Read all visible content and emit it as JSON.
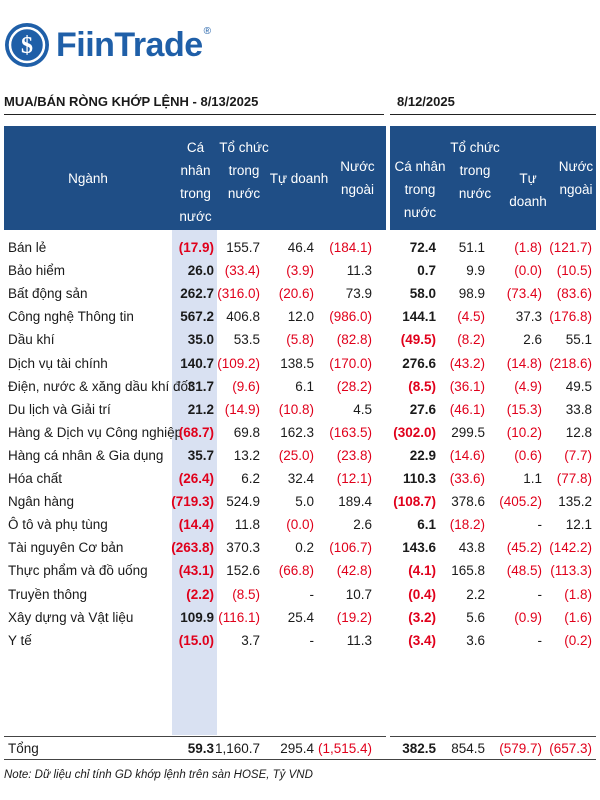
{
  "brand": {
    "name": "FiinTrade",
    "reg": "®",
    "color": "#1f5fa8"
  },
  "header": {
    "left_title": "MUA/BÁN RÒNG KHỚP LỆNH - 8/13/2025",
    "right_title": "8/12/2025"
  },
  "columns": {
    "sector": "Ngành",
    "individual": [
      "Cá nhân",
      "trong",
      "nước"
    ],
    "institution": [
      "Tổ chức",
      "trong",
      "nước"
    ],
    "proprietary": [
      "Tự doanh"
    ],
    "foreign": [
      "Nước",
      "ngoài"
    ],
    "individual_r": [
      "Cá nhân",
      "trong nước"
    ],
    "institution_r": [
      "Tổ chức",
      "trong",
      "nước"
    ],
    "proprietary_r": [
      "Tự doanh"
    ],
    "foreign_r": [
      "Nước",
      "ngoài"
    ]
  },
  "rows": [
    {
      "name": "Bán lẻ",
      "a": "(17.9)",
      "b": "155.7",
      "c": "46.4",
      "d": "(184.1)",
      "e": "72.4",
      "f": "51.1",
      "g": "(1.8)",
      "h": "(121.7)"
    },
    {
      "name": "Bảo hiểm",
      "a": "26.0",
      "b": "(33.4)",
      "c": "(3.9)",
      "d": "11.3",
      "e": "0.7",
      "f": "9.9",
      "g": "(0.0)",
      "h": "(10.5)"
    },
    {
      "name": "Bất động sản",
      "a": "262.7",
      "b": "(316.0)",
      "c": "(20.6)",
      "d": "73.9",
      "e": "58.0",
      "f": "98.9",
      "g": "(73.4)",
      "h": "(83.6)"
    },
    {
      "name": "Công nghệ Thông tin",
      "a": "567.2",
      "b": "406.8",
      "c": "12.0",
      "d": "(986.0)",
      "e": "144.1",
      "f": "(4.5)",
      "g": "37.3",
      "h": "(176.8)"
    },
    {
      "name": "Dầu khí",
      "a": "35.0",
      "b": "53.5",
      "c": "(5.8)",
      "d": "(82.8)",
      "e": "(49.5)",
      "f": "(8.2)",
      "g": "2.6",
      "h": "55.1"
    },
    {
      "name": "Dịch vụ tài chính",
      "a": "140.7",
      "b": "(109.2)",
      "c": "138.5",
      "d": "(170.0)",
      "e": "276.6",
      "f": "(43.2)",
      "g": "(14.8)",
      "h": "(218.6)"
    },
    {
      "name": "Điện, nước & xăng dầu khí đốt",
      "a": "31.7",
      "b": "(9.6)",
      "c": "6.1",
      "d": "(28.2)",
      "e": "(8.5)",
      "f": "(36.1)",
      "g": "(4.9)",
      "h": "49.5"
    },
    {
      "name": "Du lịch và Giải trí",
      "a": "21.2",
      "b": "(14.9)",
      "c": "(10.8)",
      "d": "4.5",
      "e": "27.6",
      "f": "(46.1)",
      "g": "(15.3)",
      "h": "33.8"
    },
    {
      "name": "Hàng & Dịch vụ Công nghiệp",
      "a": "(68.7)",
      "b": "69.8",
      "c": "162.3",
      "d": "(163.5)",
      "e": "(302.0)",
      "f": "299.5",
      "g": "(10.2)",
      "h": "12.8"
    },
    {
      "name": "Hàng cá nhân & Gia dụng",
      "a": "35.7",
      "b": "13.2",
      "c": "(25.0)",
      "d": "(23.8)",
      "e": "22.9",
      "f": "(14.6)",
      "g": "(0.6)",
      "h": "(7.7)"
    },
    {
      "name": "Hóa chất",
      "a": "(26.4)",
      "b": "6.2",
      "c": "32.4",
      "d": "(12.1)",
      "e": "110.3",
      "f": "(33.6)",
      "g": "1.1",
      "h": "(77.8)"
    },
    {
      "name": "Ngân hàng",
      "a": "(719.3)",
      "b": "524.9",
      "c": "5.0",
      "d": "189.4",
      "e": "(108.7)",
      "f": "378.6",
      "g": "(405.2)",
      "h": "135.2"
    },
    {
      "name": "Ô tô và phụ tùng",
      "a": "(14.4)",
      "b": "11.8",
      "c": "(0.0)",
      "d": "2.6",
      "e": "6.1",
      "f": "(18.2)",
      "g": "-",
      "h": "12.1"
    },
    {
      "name": "Tài nguyên Cơ bản",
      "a": "(263.8)",
      "b": "370.3",
      "c": "0.2",
      "d": "(106.7)",
      "e": "143.6",
      "f": "43.8",
      "g": "(45.2)",
      "h": "(142.2)"
    },
    {
      "name": "Thực phẩm và đồ uống",
      "a": "(43.1)",
      "b": "152.6",
      "c": "(66.8)",
      "d": "(42.8)",
      "e": "(4.1)",
      "f": "165.8",
      "g": "(48.5)",
      "h": "(113.3)"
    },
    {
      "name": "Truyền thông",
      "a": "(2.2)",
      "b": "(8.5)",
      "c": "-",
      "d": "10.7",
      "e": "(0.4)",
      "f": "2.2",
      "g": "-",
      "h": "(1.8)"
    },
    {
      "name": "Xây dựng và Vật liệu",
      "a": "109.9",
      "b": "(116.1)",
      "c": "25.4",
      "d": "(19.2)",
      "e": "(3.2)",
      "f": "5.6",
      "g": "(0.9)",
      "h": "(1.6)"
    },
    {
      "name": "Y tế",
      "a": "(15.0)",
      "b": "3.7",
      "c": "-",
      "d": "11.3",
      "e": "(3.4)",
      "f": "3.6",
      "g": "-",
      "h": "(0.2)"
    }
  ],
  "total": {
    "name": "Tổng",
    "a": "59.3",
    "b": "1,160.7",
    "c": "295.4",
    "d": "(1,515.4)",
    "e": "382.5",
    "f": "854.5",
    "g": "(579.7)",
    "h": "(657.3)"
  },
  "note": "Note: Dữ liệu chỉ tính GD khớp lệnh trên sàn HOSE, Tỷ VND",
  "colors": {
    "header_bg": "#1f4e86",
    "shade": "#d9e1f2",
    "negative": "#e0001b"
  }
}
